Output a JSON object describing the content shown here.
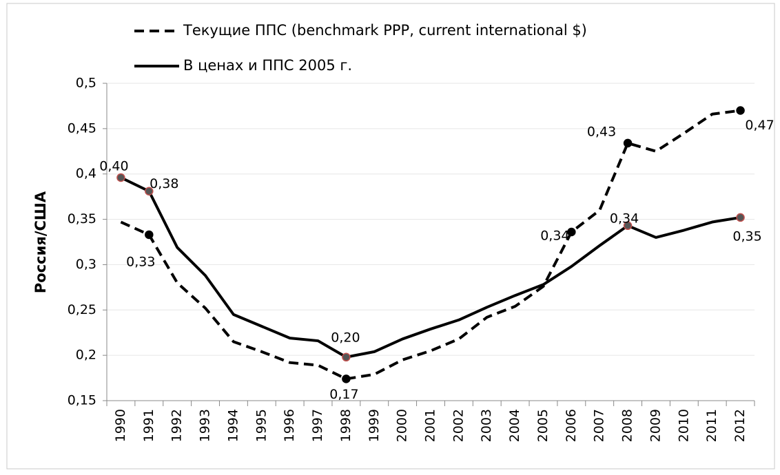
{
  "chart_data": {
    "type": "line",
    "y_label": "Россия/США",
    "categories": [
      "1990",
      "1991",
      "1992",
      "1993",
      "1994",
      "1995",
      "1996",
      "1997",
      "1998",
      "1999",
      "2000",
      "2001",
      "2002",
      "2003",
      "2004",
      "2005",
      "2006",
      "2007",
      "2008",
      "2009",
      "2010",
      "2011",
      "2012"
    ],
    "series": [
      {
        "name": "Текущие ППС (benchmark PPP, current international $)",
        "color": "#000000",
        "dash": true,
        "marker_color": "#000000",
        "values": [
          0.347,
          0.333,
          0.28,
          0.252,
          0.215,
          0.204,
          0.192,
          0.189,
          0.174,
          0.179,
          0.195,
          0.205,
          0.218,
          0.242,
          0.254,
          0.276,
          0.336,
          0.36,
          0.434,
          0.425,
          0.445,
          0.466,
          0.47
        ],
        "value_labels": [
          null,
          "0,33",
          null,
          null,
          null,
          null,
          null,
          null,
          "0,17",
          null,
          null,
          null,
          null,
          null,
          null,
          null,
          "0,34",
          null,
          "0,43",
          null,
          null,
          null,
          "0,47"
        ]
      },
      {
        "name": "В ценах и ППС 2005 г.",
        "color": "#000000",
        "dash": false,
        "marker_color": "#c0504d",
        "values": [
          0.396,
          0.381,
          0.319,
          0.288,
          0.245,
          0.232,
          0.219,
          0.216,
          0.198,
          0.204,
          0.218,
          0.229,
          0.239,
          0.253,
          0.266,
          0.278,
          0.298,
          0.321,
          0.343,
          0.33,
          0.338,
          0.347,
          0.352
        ],
        "value_labels": [
          "0,40",
          "0,38",
          null,
          null,
          null,
          null,
          null,
          null,
          "0,20",
          null,
          null,
          null,
          null,
          null,
          null,
          null,
          null,
          null,
          "0,34",
          null,
          null,
          null,
          "0,35"
        ]
      }
    ],
    "ylim": [
      0.15,
      0.5
    ],
    "yticks": [
      {
        "value": 0.15,
        "label": "0,15"
      },
      {
        "value": 0.2,
        "label": "0,2"
      },
      {
        "value": 0.25,
        "label": "0,25"
      },
      {
        "value": 0.3,
        "label": "0,3"
      },
      {
        "value": 0.35,
        "label": "0,35"
      },
      {
        "value": 0.4,
        "label": "0,4"
      },
      {
        "value": 0.45,
        "label": "0,45"
      },
      {
        "value": 0.5,
        "label": "0,5"
      }
    ],
    "grid": true
  }
}
